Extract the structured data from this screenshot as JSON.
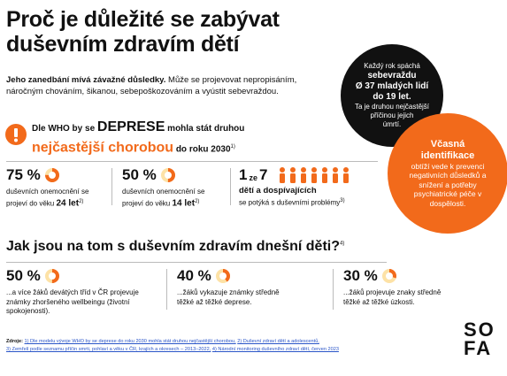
{
  "header": {
    "title_lines": [
      "Proč je důležité se zabývat",
      "duševním zdravím dětí"
    ]
  },
  "intro": {
    "bold": "Jeho zanedbání mívá závažné důsledky.",
    "text": "Může se projevovat nepropisáním, náročným chováním, šikanou, sebepoškozováním a vyústit sebevraždou."
  },
  "callout_black": {
    "lines": [
      "Každý rok spáchá",
      "sebevraždu",
      "Ø 37 mladých lidí",
      "do 19 let.",
      "Ta je druhou nejčastější",
      "příčinou jejich",
      "úmrtí."
    ]
  },
  "callout_orange": {
    "title": "Včasná identifikace",
    "text": "obtíží vede k prevenci negativních důsledků a snížení a potřeby psychiatrické péče v dospělosti."
  },
  "who": {
    "t1": "Dle WHO by se",
    "t2": "DEPRESE",
    "t3": "mohla stát druhou",
    "t4": "nejčastější chorobou",
    "t5": "do roku 2030",
    "note": "1)"
  },
  "stats": [
    {
      "value": 75,
      "label": "75 %",
      "text": "duševních onemocnění se projeví do věku",
      "em": "24 let",
      "note": "2)"
    },
    {
      "value": 50,
      "label": "50 %",
      "text": "duševních onemocnění se projeví do věku",
      "em": "14 let",
      "note": "2)"
    }
  ],
  "ratio": {
    "num": "1",
    "mid": "ze",
    "den": "7",
    "bold": "dětí a dospívajících",
    "text": "se potýká s duševními problémy",
    "note": "3)"
  },
  "section2": {
    "heading": "Jak jsou na tom s duševním zdravím dnešní děti?",
    "note": "4)",
    "stats": [
      {
        "value": 50,
        "label": "50 %",
        "text": "...a více žáků devátých tříd v ČR projevuje známky zhoršeného wellbeingu (životní spokojenosti)."
      },
      {
        "value": 40,
        "label": "40 %",
        "text": "...žáků vykazuje známky středně těžké až těžké deprese."
      },
      {
        "value": 30,
        "label": "30 %",
        "text": "...žáků projevuje znaky středně těžké až těžké úzkosti."
      }
    ]
  },
  "sources": {
    "label": "Zdroje:",
    "items": [
      "1) Dle modelu vývoje WHO by se deprese do roku 2030 mohla stát druhou nejčastější chorobou,",
      "2) Duševní zdraví dětí a adolescentů,",
      "3) Zemřelí podle seznamu příčin smrti, pohlaví a věku v ČR, krajích a okresech – 2013–2022,",
      "4) Národní monitoring duševního zdraví dětí, červen 2023"
    ]
  },
  "logo": {
    "lines": [
      "SO",
      "FA"
    ]
  }
}
